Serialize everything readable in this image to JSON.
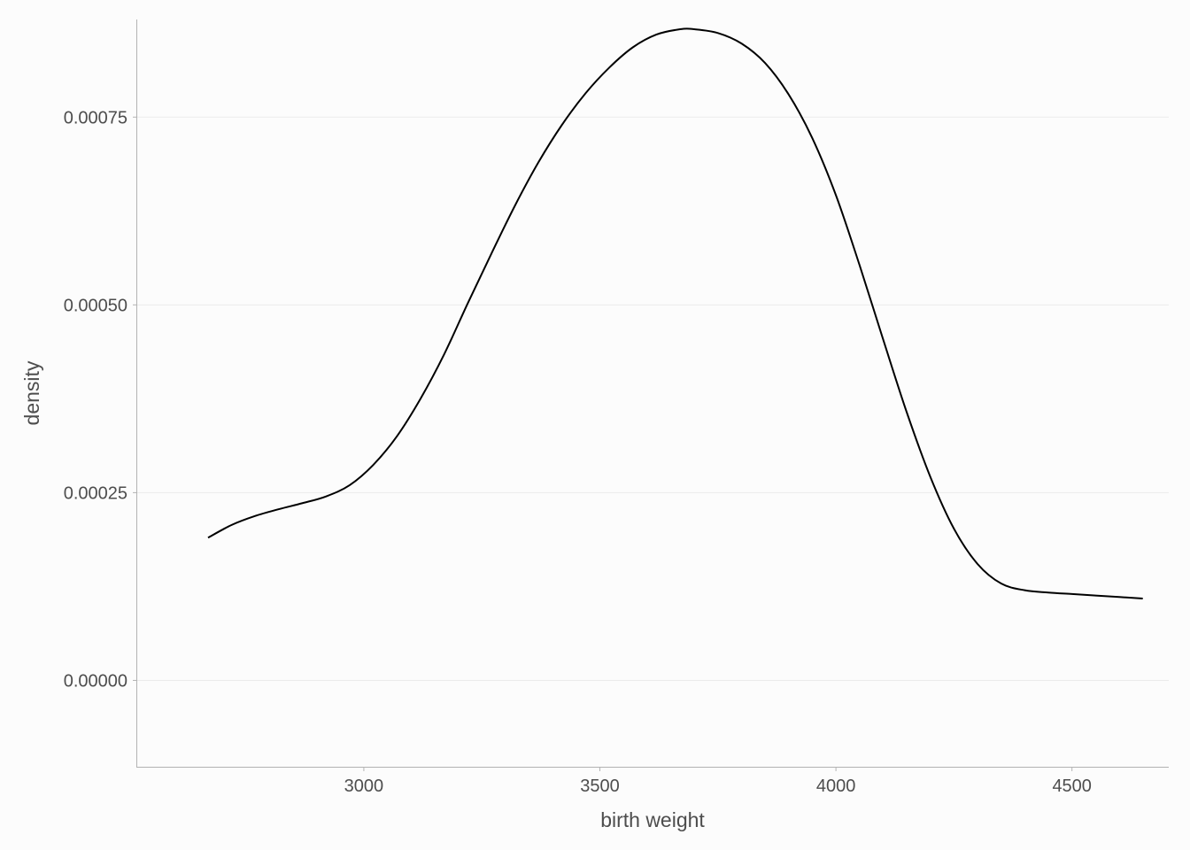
{
  "chart_data": {
    "type": "line",
    "title": "",
    "xlabel": "birth weight",
    "ylabel": "density",
    "xlim": [
      2520,
      4705
    ],
    "ylim": [
      -0.000115,
      0.00088
    ],
    "x_ticks": [
      3000,
      3500,
      4000,
      4500
    ],
    "x_tick_labels": [
      "3000",
      "3500",
      "4000",
      "4500"
    ],
    "y_ticks": [
      0,
      0.00025,
      0.0005,
      0.00075
    ],
    "y_tick_labels": [
      "0.00000",
      "0.00025",
      "0.00050",
      "0.00075"
    ],
    "grid": true,
    "legend": "none",
    "colors": {
      "line": "#000000",
      "background": "#fcfcfc",
      "grid": "#ebebeb",
      "axis": "#b3b3b3",
      "text": "#4d4d4d"
    },
    "series": [
      {
        "x": [
          2670,
          2720,
          2770,
          2820,
          2870,
          2920,
          2970,
          3020,
          3070,
          3120,
          3170,
          3220,
          3270,
          3320,
          3370,
          3420,
          3470,
          3520,
          3570,
          3620,
          3670,
          3700,
          3750,
          3800,
          3850,
          3900,
          3950,
          4000,
          4050,
          4100,
          4150,
          4200,
          4250,
          4300,
          4350,
          4400,
          4450,
          4500,
          4550,
          4600,
          4650
        ],
        "values": [
          0.00019,
          0.000207,
          0.000219,
          0.000228,
          0.000236,
          0.000245,
          0.00026,
          0.000287,
          0.000325,
          0.000375,
          0.000434,
          0.000502,
          0.000568,
          0.000632,
          0.00069,
          0.00074,
          0.000782,
          0.000816,
          0.000843,
          0.00086,
          0.000867,
          0.000867,
          0.000862,
          0.000848,
          0.000822,
          0.00078,
          0.000722,
          0.000646,
          0.000553,
          0.000454,
          0.000357,
          0.000271,
          0.000202,
          0.000155,
          0.000129,
          0.00012,
          0.000117,
          0.000115,
          0.000113,
          0.000111,
          0.000109
        ]
      }
    ]
  }
}
